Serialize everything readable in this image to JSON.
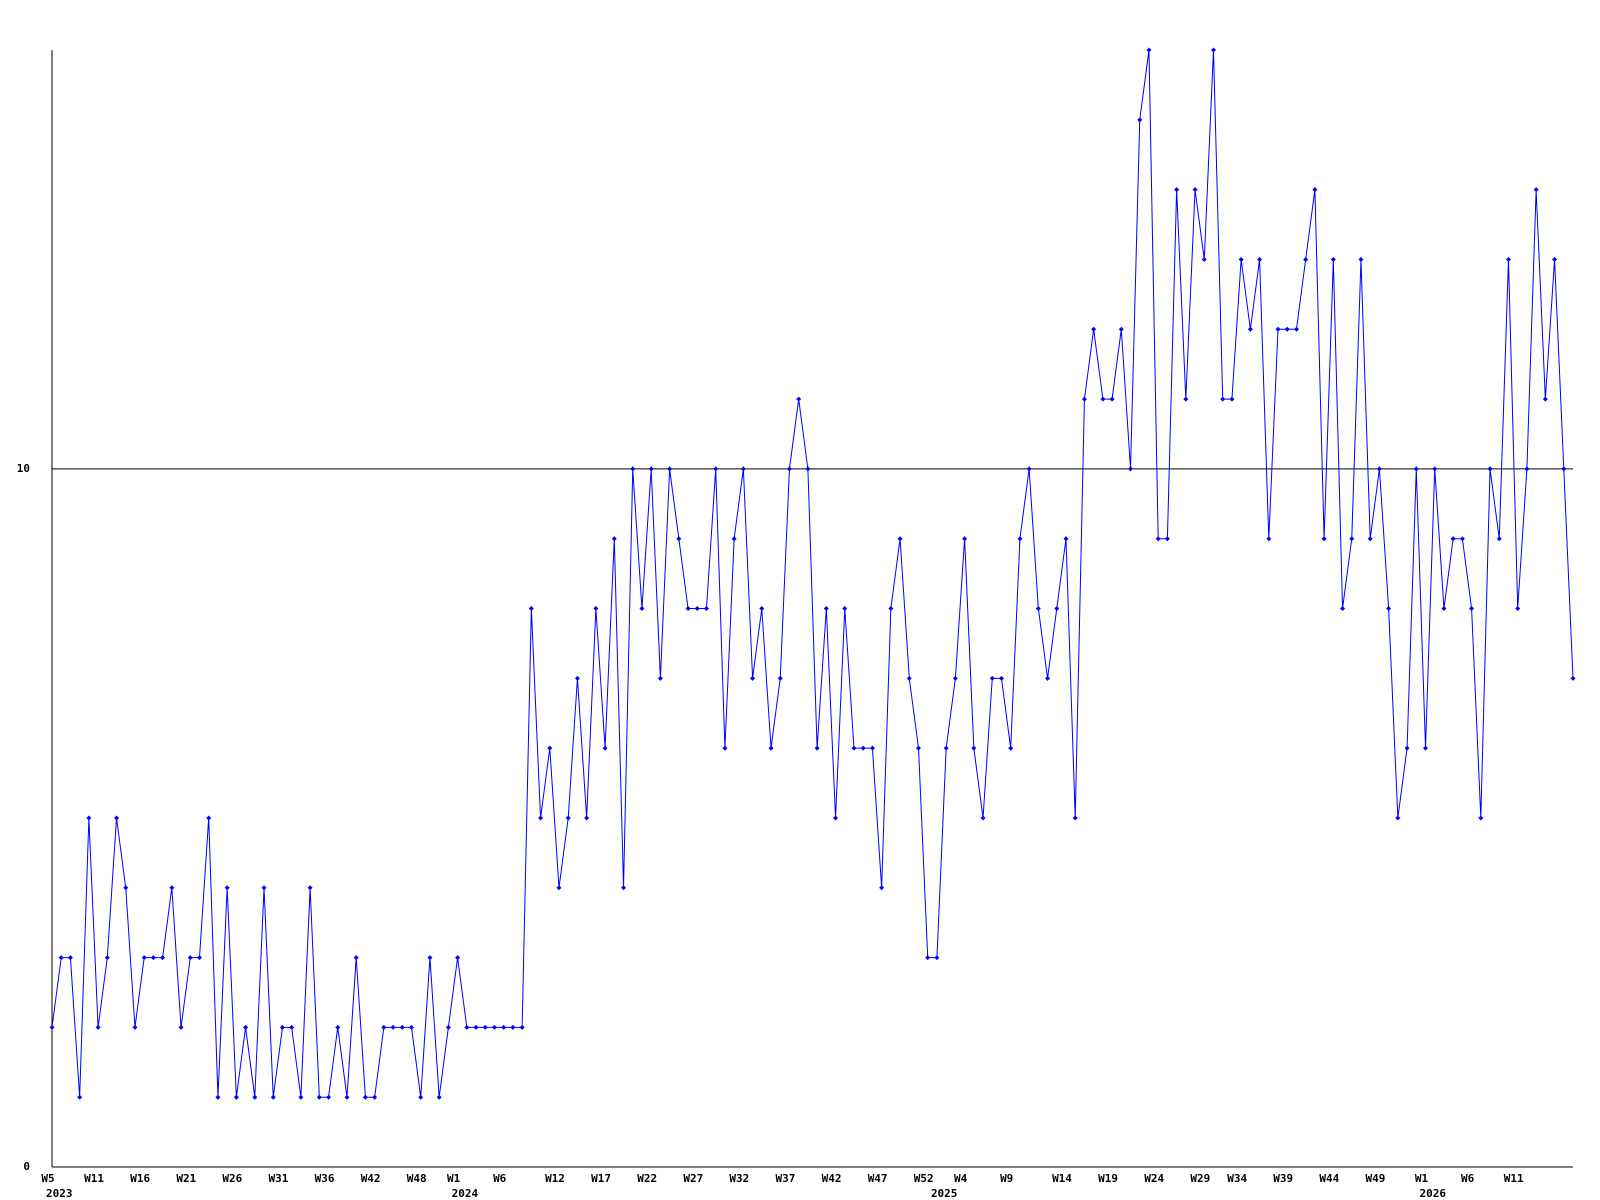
{
  "chart_data": {
    "type": "line",
    "categories": [
      "W5",
      null,
      null,
      null,
      null,
      "W11",
      null,
      null,
      null,
      null,
      "W16",
      null,
      null,
      null,
      null,
      "W21",
      null,
      null,
      null,
      null,
      "W26",
      null,
      null,
      null,
      null,
      "W31",
      null,
      null,
      null,
      null,
      "W36",
      null,
      null,
      null,
      null,
      "W42",
      null,
      null,
      null,
      null,
      "W48",
      null,
      null,
      null,
      "W1",
      null,
      null,
      null,
      null,
      "W6",
      null,
      null,
      null,
      null,
      null,
      "W12",
      null,
      null,
      null,
      null,
      "W17",
      null,
      null,
      null,
      null,
      "W22",
      null,
      null,
      null,
      null,
      "W27",
      null,
      null,
      null,
      null,
      "W32",
      null,
      null,
      null,
      null,
      "W37",
      null,
      null,
      null,
      null,
      "W42",
      null,
      null,
      null,
      null,
      "W47",
      null,
      null,
      null,
      null,
      "W52",
      null,
      null,
      null,
      "W4",
      null,
      null,
      null,
      null,
      "W9",
      null,
      null,
      null,
      null,
      null,
      "W14",
      null,
      null,
      null,
      null,
      "W19",
      null,
      null,
      null,
      null,
      "W24",
      null,
      null,
      null,
      null,
      "W29",
      null,
      null,
      null,
      "W34",
      null,
      null,
      null,
      null,
      "W39",
      null,
      null,
      null,
      null,
      "W44",
      null,
      null,
      null,
      null,
      "W49",
      null,
      null,
      null,
      null,
      "W1",
      null,
      null,
      null,
      null,
      "W6",
      null,
      null,
      null,
      null,
      "W11",
      null,
      null,
      null,
      null,
      null,
      null
    ],
    "category_years": [
      "2023",
      null,
      null,
      null,
      null,
      null,
      null,
      null,
      null,
      null,
      null,
      null,
      null,
      null,
      null,
      null,
      null,
      null,
      null,
      null,
      null,
      null,
      null,
      null,
      null,
      null,
      null,
      null,
      null,
      null,
      null,
      null,
      null,
      null,
      null,
      null,
      null,
      null,
      null,
      null,
      null,
      null,
      null,
      null,
      "2024",
      null,
      null,
      null,
      null,
      null,
      null,
      null,
      null,
      null,
      null,
      null,
      null,
      null,
      null,
      null,
      null,
      null,
      null,
      null,
      null,
      null,
      null,
      null,
      null,
      null,
      null,
      null,
      null,
      null,
      null,
      null,
      null,
      null,
      null,
      null,
      null,
      null,
      null,
      null,
      null,
      null,
      null,
      null,
      null,
      null,
      null,
      null,
      null,
      null,
      null,
      null,
      "2025",
      null,
      null,
      null,
      null,
      null,
      null,
      null,
      null,
      null,
      null,
      null,
      null,
      null,
      null,
      null,
      null,
      null,
      null,
      null,
      null,
      null,
      null,
      null,
      null,
      null,
      null,
      null,
      null,
      null,
      null,
      null,
      null,
      null,
      null,
      null,
      null,
      null,
      null,
      null,
      null,
      null,
      null,
      null,
      null,
      null,
      null,
      null,
      null,
      null,
      null,
      null,
      null,
      "2026",
      null,
      null,
      null,
      null,
      null,
      null,
      null,
      null,
      null,
      null,
      null,
      null,
      null,
      null,
      null,
      null
    ],
    "series": [
      {
        "color": "#0000ff",
        "values": [
          2,
          3,
          3,
          1,
          5,
          2,
          3,
          5,
          4,
          2,
          3,
          3,
          3,
          4,
          2,
          3,
          3,
          5,
          1,
          4,
          1,
          2,
          1,
          4,
          1,
          2,
          2,
          1,
          4,
          1,
          1,
          2,
          1,
          3,
          1,
          1,
          2,
          2,
          2,
          2,
          1,
          3,
          1,
          2,
          3,
          2,
          2,
          2,
          2,
          2,
          2,
          2,
          8,
          5,
          6,
          4,
          5,
          7,
          5,
          8,
          6,
          9,
          4,
          10,
          8,
          10,
          7,
          10,
          9,
          8,
          8,
          8,
          10,
          6,
          9,
          10,
          7,
          8,
          6,
          7,
          10,
          11,
          10,
          6,
          8,
          5,
          8,
          6,
          6,
          6,
          4,
          8,
          9,
          7,
          6,
          3,
          3,
          6,
          7,
          9,
          6,
          5,
          7,
          7,
          6,
          9,
          10,
          8,
          7,
          8,
          9,
          5,
          11,
          12,
          11,
          11,
          12,
          10,
          15,
          16,
          9,
          9,
          14,
          11,
          14,
          13,
          16,
          11,
          11,
          13,
          12,
          13,
          9,
          12,
          12,
          12,
          13,
          14,
          9,
          13,
          8,
          9,
          13,
          9,
          10,
          8,
          5,
          6,
          10,
          6,
          10,
          8,
          9,
          9,
          8,
          5,
          10,
          9,
          13,
          8,
          10,
          14,
          11,
          13,
          10,
          7
        ]
      }
    ],
    "ylim": [
      0,
      16
    ],
    "yticks": [
      0,
      10
    ],
    "grid": true
  }
}
